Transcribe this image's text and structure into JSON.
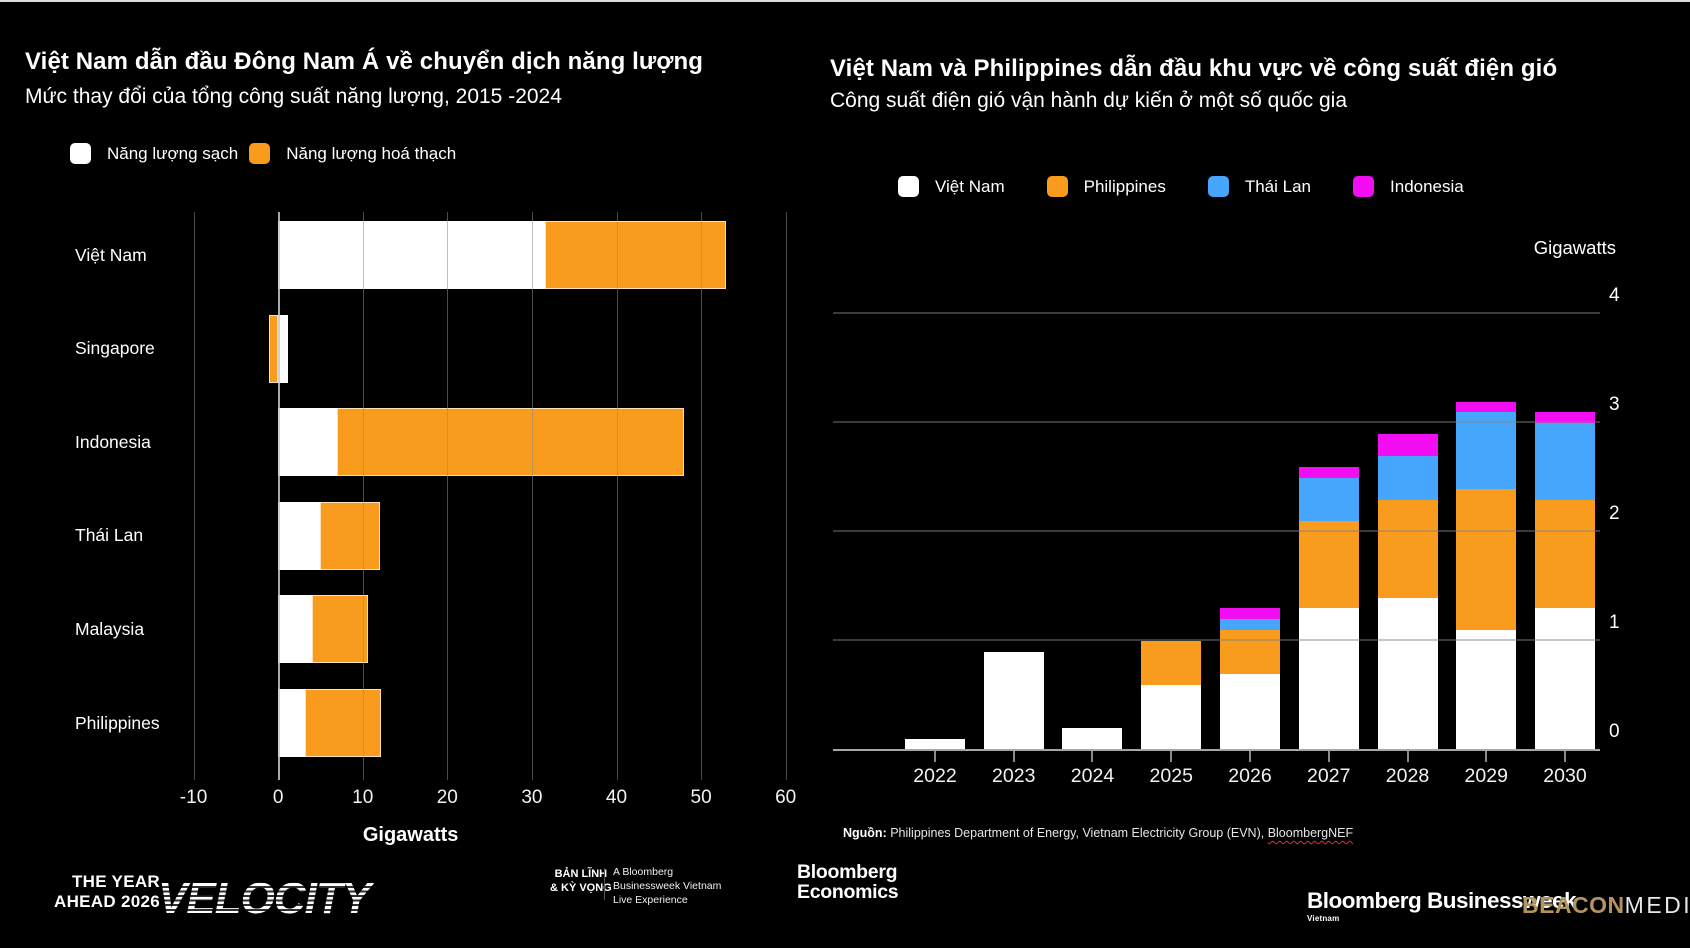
{
  "chart_data": [
    {
      "type": "bar",
      "orientation": "horizontal-stacked",
      "title": "Việt Nam dẫn đầu Đông Nam Á về chuyển dịch năng lượng",
      "subtitle": "Mức thay đổi của tổng công suất năng lượng, 2015 -2024",
      "xlabel": "Gigawatts",
      "categories": [
        "Việt Nam",
        "Singapore",
        "Indonesia",
        "Thái Lan",
        "Malaysia",
        "Philippines"
      ],
      "series": [
        {
          "name": "Năng lượng sạch",
          "color": "#ffffff",
          "values": [
            31.5,
            1.2,
            7,
            5,
            4,
            3.2
          ]
        },
        {
          "name": "Năng lượng hoá thạch",
          "color": "#F99B1C",
          "values": [
            21.5,
            -1.1,
            41,
            7,
            6.6,
            9
          ]
        }
      ],
      "xticks": [
        -10,
        0,
        10,
        20,
        30,
        40,
        50,
        60
      ],
      "xlim": [
        -11.6,
        61.1
      ],
      "grid": "vertical"
    },
    {
      "type": "bar",
      "orientation": "vertical-stacked",
      "title": "Việt Nam và Philippines dẫn đầu khu vực về công suất điện gió",
      "subtitle": "Công suất điện gió vận hành dự kiến ở một số quốc gia",
      "unit_label": "Gigawatts",
      "categories": [
        "2022",
        "2023",
        "2024",
        "2025",
        "2026",
        "2027",
        "2028",
        "2029",
        "2030"
      ],
      "series": [
        {
          "name": "Việt Nam",
          "color": "#ffffff",
          "values": [
            0.1,
            0.9,
            0.2,
            0.6,
            0.7,
            1.3,
            1.4,
            1.1,
            1.3
          ]
        },
        {
          "name": "Philippines",
          "color": "#F99B1C",
          "values": [
            0,
            0,
            0,
            0.4,
            0.4,
            0.8,
            0.9,
            1.3,
            1.0
          ]
        },
        {
          "name": "Thái Lan",
          "color": "#45A6FC",
          "values": [
            0,
            0,
            0,
            0,
            0.1,
            0.4,
            0.4,
            0.7,
            0.7
          ]
        },
        {
          "name": "Indonesia",
          "color": "#F30DF3",
          "values": [
            0,
            0,
            0,
            0,
            0.1,
            0.1,
            0.2,
            0.1,
            0.1
          ]
        }
      ],
      "yticks": [
        0,
        1,
        2,
        3,
        4
      ],
      "ylim": [
        0,
        4.5
      ],
      "grid": "horizontal",
      "legend_position": "top"
    }
  ],
  "source": {
    "label": "Nguồn:",
    "text": " Philippines Department of Energy, Vietnam Electricity Group (EVN), ",
    "highlight": "BloombergNEF"
  },
  "footer": {
    "the_year": "THE YEAR",
    "ahead": "AHEAD 2026",
    "velocity": "VELOCITY",
    "ban_linh": "BẢN LĨNH",
    "ky_vong": "& KỲ VỌNG",
    "live_1": "A Bloomberg",
    "live_2": "Businessweek Vietnam",
    "live_3": "Live Experience",
    "econ_1": "Bloomberg",
    "econ_2": "Economics",
    "businessweek": "Bloomberg Businessweek",
    "businessweek_sub": "Vietnam",
    "beacon": "BEACON",
    "media": "MEDIA"
  }
}
